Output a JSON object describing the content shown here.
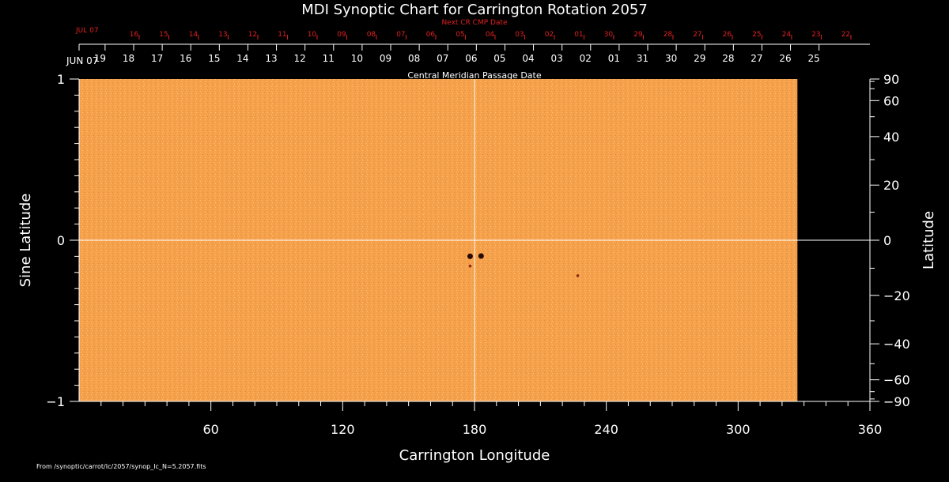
{
  "chart_data": {
    "type": "heatmap",
    "title": "MDI Synoptic Chart for Carrington Rotation 2057",
    "xlabel": "Carrington Longitude",
    "ylabel_left": "Sine Latitude",
    "ylabel_right": "Latitude",
    "xlim": [
      0,
      360
    ],
    "ylim": [
      -1,
      1
    ],
    "x_ticks": [
      60,
      120,
      180,
      240,
      300,
      360
    ],
    "y_left_ticks": [
      {
        "value": 1,
        "label": "1"
      },
      {
        "value": 0,
        "label": "0"
      },
      {
        "value": -1,
        "label": "−1"
      }
    ],
    "y_right_ticks": [
      {
        "lat": 90,
        "label": "90"
      },
      {
        "lat": 60,
        "label": "60"
      },
      {
        "lat": 40,
        "label": "40"
      },
      {
        "lat": 20,
        "label": "20"
      },
      {
        "lat": 0,
        "label": "0"
      },
      {
        "lat": -20,
        "label": "−20"
      },
      {
        "lat": -40,
        "label": "−40"
      },
      {
        "lat": -60,
        "label": "−60"
      },
      {
        "lat": -90,
        "label": "−90"
      }
    ],
    "data_coverage_longitude": [
      0,
      327
    ],
    "crosshair": {
      "longitude": 180,
      "sine_latitude": 0
    },
    "features": [
      {
        "longitude": 178,
        "sine_latitude": -0.1,
        "kind": "sunspot"
      },
      {
        "longitude": 183,
        "sine_latitude": -0.098,
        "kind": "sunspot"
      },
      {
        "longitude": 178,
        "sine_latitude": -0.16,
        "kind": "small-spot"
      },
      {
        "longitude": 227,
        "sine_latitude": -0.22,
        "kind": "small-spot"
      }
    ],
    "top_axis": {
      "label": "Central Meridian Passage Date",
      "start_label": "JUN 07",
      "ticks": [
        {
          "lon": 9.5,
          "label": "19"
        },
        {
          "lon": 22.5,
          "label": "18"
        },
        {
          "lon": 35.5,
          "label": "17"
        },
        {
          "lon": 48.5,
          "label": "16"
        },
        {
          "lon": 61.5,
          "label": "15"
        },
        {
          "lon": 74.5,
          "label": "14"
        },
        {
          "lon": 87.5,
          "label": "13"
        },
        {
          "lon": 100.5,
          "label": "12"
        },
        {
          "lon": 113.5,
          "label": "11"
        },
        {
          "lon": 126.5,
          "label": "10"
        },
        {
          "lon": 139.5,
          "label": "09"
        },
        {
          "lon": 152.5,
          "label": "08"
        },
        {
          "lon": 165.5,
          "label": "07"
        },
        {
          "lon": 178.5,
          "label": "06"
        },
        {
          "lon": 191.5,
          "label": "05"
        },
        {
          "lon": 204.5,
          "label": "04"
        },
        {
          "lon": 217.5,
          "label": "03"
        },
        {
          "lon": 230.5,
          "label": "02"
        },
        {
          "lon": 243.5,
          "label": "01"
        },
        {
          "lon": 256.5,
          "label": "31"
        },
        {
          "lon": 269.5,
          "label": "30"
        },
        {
          "lon": 282.5,
          "label": "29"
        },
        {
          "lon": 295.5,
          "label": "28"
        },
        {
          "lon": 308.5,
          "label": "27"
        },
        {
          "lon": 321.5,
          "label": "26"
        },
        {
          "lon": 334.5,
          "label": "25"
        }
      ]
    },
    "next_cr_axis": {
      "label": "Next CR CMP Date",
      "start_label": "JUL 07",
      "ticks": [
        {
          "lon": 25,
          "label": "16"
        },
        {
          "lon": 38.5,
          "label": "15"
        },
        {
          "lon": 52,
          "label": "14"
        },
        {
          "lon": 65.5,
          "label": "13"
        },
        {
          "lon": 79,
          "label": "12"
        },
        {
          "lon": 92.5,
          "label": "11"
        },
        {
          "lon": 106,
          "label": "10"
        },
        {
          "lon": 119.5,
          "label": "09"
        },
        {
          "lon": 133,
          "label": "08"
        },
        {
          "lon": 146.5,
          "label": "07"
        },
        {
          "lon": 160,
          "label": "06"
        },
        {
          "lon": 173.5,
          "label": "05"
        },
        {
          "lon": 187,
          "label": "04"
        },
        {
          "lon": 200.5,
          "label": "03"
        },
        {
          "lon": 214,
          "label": "02"
        },
        {
          "lon": 227.5,
          "label": "01"
        },
        {
          "lon": 241,
          "label": "30"
        },
        {
          "lon": 254.5,
          "label": "29"
        },
        {
          "lon": 268,
          "label": "28"
        },
        {
          "lon": 281.5,
          "label": "27"
        },
        {
          "lon": 295,
          "label": "26"
        },
        {
          "lon": 308.5,
          "label": "25"
        },
        {
          "lon": 322,
          "label": "24"
        },
        {
          "lon": 335.5,
          "label": "23"
        },
        {
          "lon": 349,
          "label": "22"
        }
      ]
    },
    "footnote": "From /synoptic/carrot/Ic/2057/synop_Ic_N=5.2057.fits",
    "colors": {
      "map_fill": "#f5a04a",
      "map_light": "#ffc070",
      "sunspot": "#2a0a05",
      "axis_text": "#ffffff",
      "next_cr": "#e02020",
      "background": "#000000"
    }
  }
}
